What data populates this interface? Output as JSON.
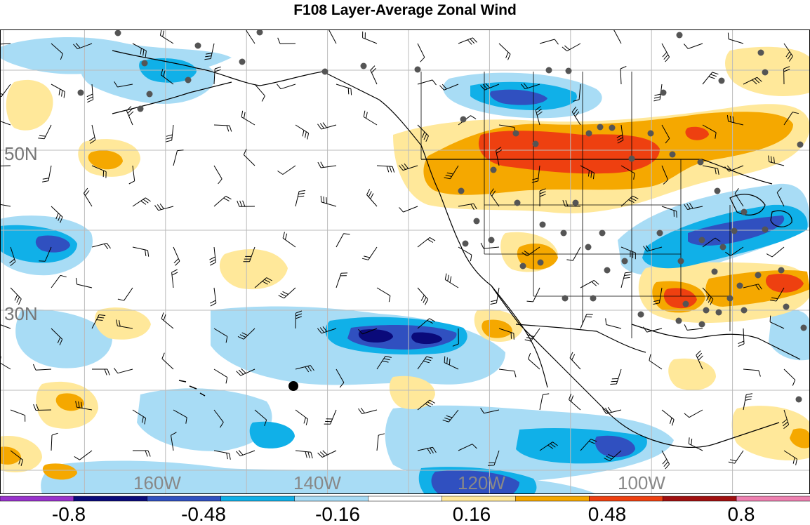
{
  "title": "F108 Layer-Average Zonal Wind",
  "map": {
    "lat_labels": [
      "50N",
      "30N"
    ],
    "lon_labels": [
      "160W",
      "140W",
      "120W",
      "100W"
    ]
  },
  "colorbar": {
    "colors": [
      "#9933cc",
      "#0a0a7a",
      "#3050c0",
      "#10b0e8",
      "#a8dcf5",
      "#ffffff",
      "#ffe89a",
      "#f5a800",
      "#ee4010",
      "#a01010",
      "#ee80b0"
    ],
    "tick_labels": [
      "-0.8",
      "-0.48",
      "-0.16",
      "0.16",
      "0.48",
      "0.8"
    ]
  }
}
